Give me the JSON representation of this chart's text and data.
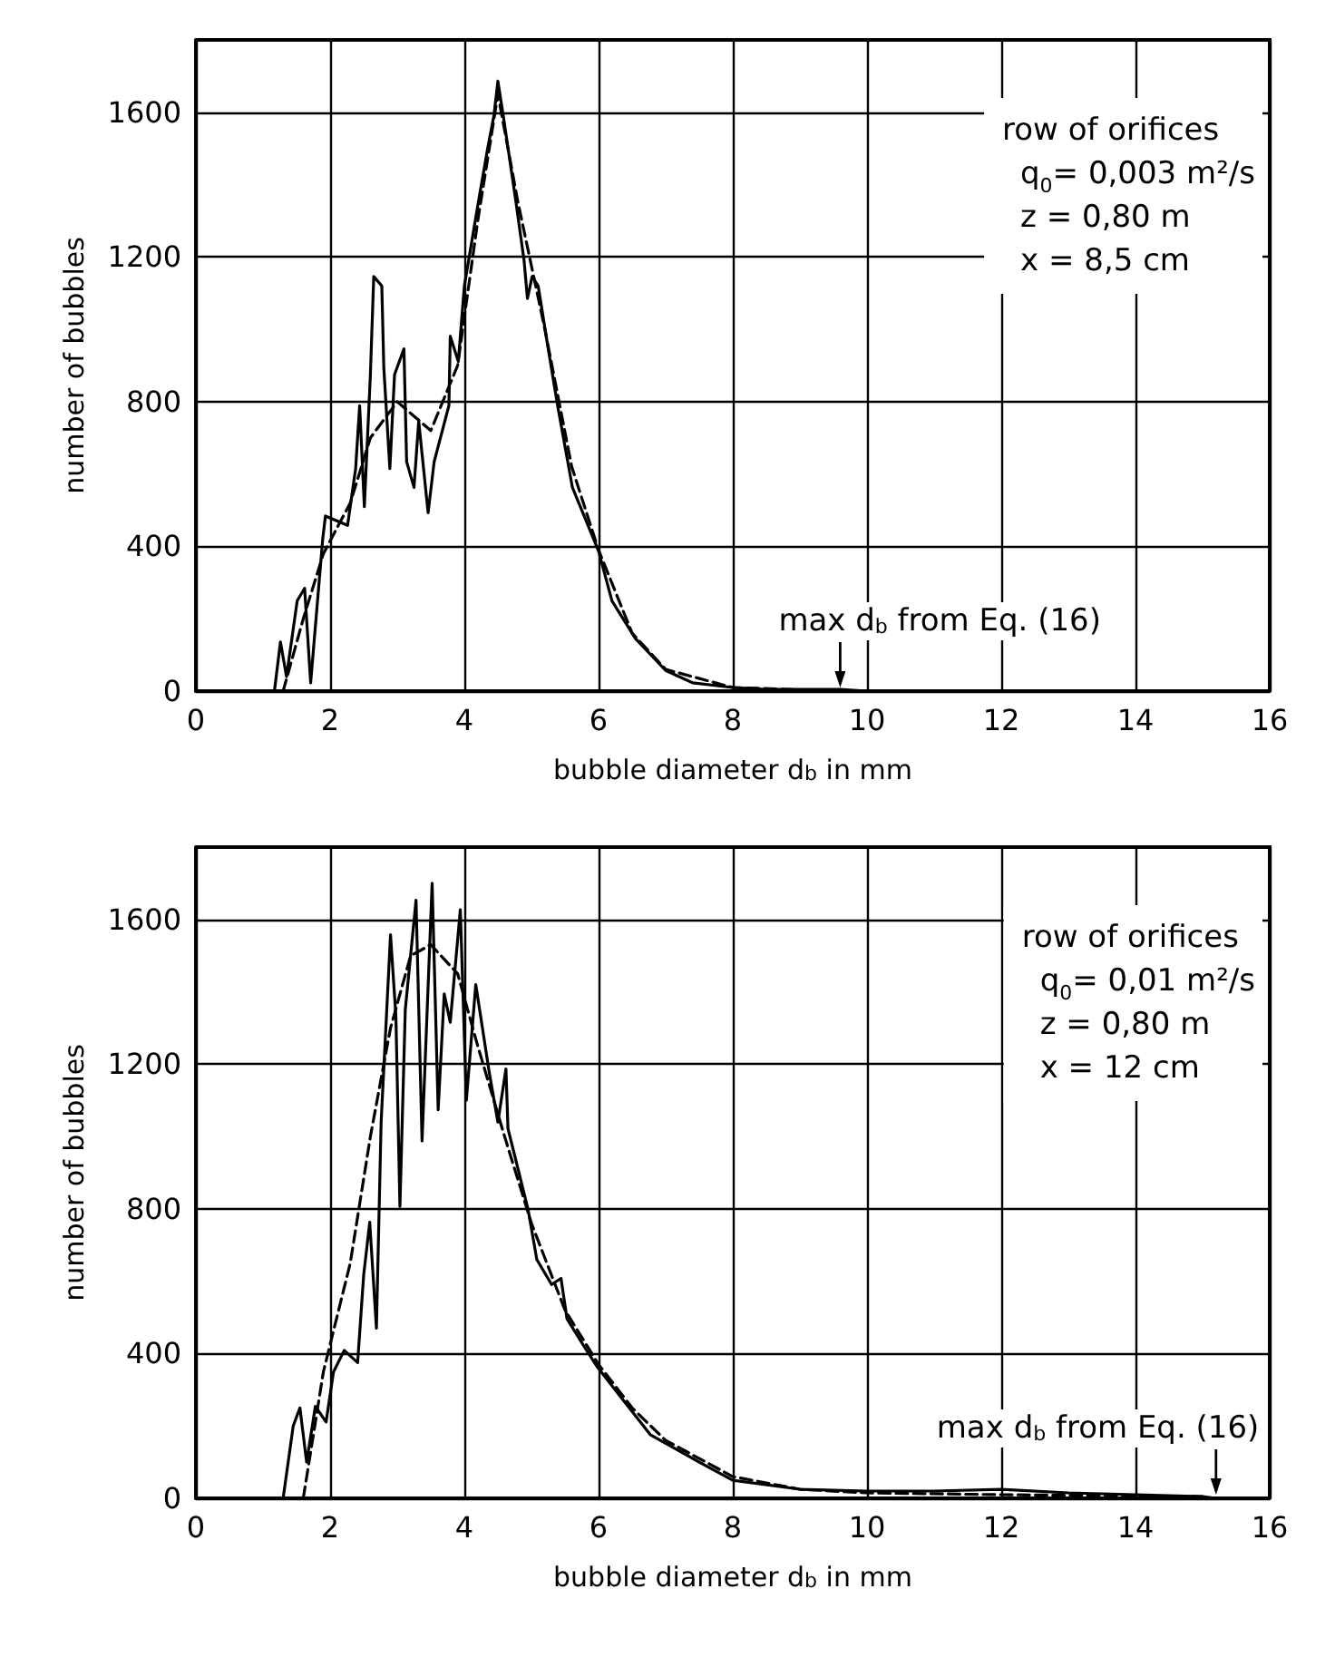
{
  "chart_data": [
    {
      "type": "line",
      "xlabel": "bubble diameter d$_{b}$ in mm",
      "ylabel": "number of bubbles",
      "xlim": [
        0,
        16
      ],
      "ylim": [
        0,
        1800
      ],
      "xticks": [
        0,
        2,
        4,
        6,
        8,
        10,
        12,
        14,
        16
      ],
      "yticks": [
        0,
        400,
        800,
        1200,
        1600
      ],
      "grid": true,
      "marker": "none",
      "annotations": [
        "row of orifices",
        "q$_{0}$= 0,003 m²/s",
        "z = 0,80 m",
        "x = 8,5 cm",
        {
          "text": "max d$_{b}$ from Eq. (16)",
          "x": 9.6,
          "y": 0
        }
      ],
      "series": [
        {
          "color": "#000000",
          "line_style": "solid",
          "x": [
            1.17,
            1.26,
            1.35,
            1.51,
            1.62,
            1.71,
            1.89,
            1.93,
            2.26,
            2.38,
            2.44,
            2.51,
            2.6,
            2.65,
            2.77,
            2.8,
            2.89,
            2.96,
            3.1,
            3.14,
            3.25,
            3.32,
            3.46,
            3.55,
            3.77,
            3.79,
            3.91,
            4.0,
            4.22,
            4.35,
            4.44,
            4.5,
            4.58,
            4.76,
            4.89,
            4.94,
            5.01,
            5.1,
            5.25,
            5.39,
            5.61,
            6.0,
            6.2,
            6.55,
            7.0,
            7.4,
            8.0,
            8.5,
            9.0,
            9.6,
            10.0
          ],
          "values": [
            0,
            136,
            40,
            250,
            284,
            23,
            421,
            484,
            458,
            615,
            789,
            510,
            875,
            1146,
            1120,
            894,
            615,
            875,
            946,
            634,
            563,
            746,
            493,
            634,
            789,
            981,
            911,
            1120,
            1364,
            1503,
            1590,
            1686,
            1590,
            1364,
            1190,
            1085,
            1146,
            1120,
            946,
            789,
            563,
            387,
            249,
            145,
            57,
            23,
            10,
            5,
            5,
            5,
            0
          ]
        },
        {
          "color": "#000000",
          "line_style": "dashed",
          "x": [
            1.3,
            1.6,
            1.9,
            2.3,
            2.6,
            3.0,
            3.5,
            3.9,
            4.2,
            4.5,
            4.8,
            5.2,
            5.6,
            6.0,
            6.5,
            7.0,
            8.0,
            9.6
          ],
          "values": [
            0,
            200,
            380,
            520,
            700,
            800,
            720,
            900,
            1300,
            1650,
            1350,
            1000,
            620,
            390,
            160,
            60,
            10,
            0
          ]
        }
      ]
    },
    {
      "type": "line",
      "xlabel": "bubble diameter d$_{b}$ in mm",
      "ylabel": "number of bubbles",
      "xlim": [
        0,
        16
      ],
      "ylim": [
        0,
        1800
      ],
      "xticks": [
        0,
        2,
        4,
        6,
        8,
        10,
        12,
        14,
        16
      ],
      "yticks": [
        0,
        400,
        800,
        1200,
        1600
      ],
      "grid": true,
      "marker": "none",
      "annotations": [
        "row of orifices",
        "q$_{0}$= 0,01 m²/s",
        "z = 0,80 m",
        "x = 12 cm",
        {
          "text": "max d$_{b}$ from Eq. (16)",
          "x": 15.2,
          "y": 0
        }
      ],
      "series": [
        {
          "color": "#000000",
          "line_style": "solid",
          "x": [
            1.3,
            1.45,
            1.55,
            1.65,
            1.78,
            1.94,
            2.05,
            2.21,
            2.41,
            2.5,
            2.59,
            2.69,
            2.76,
            2.9,
            2.98,
            3.04,
            3.12,
            3.28,
            3.37,
            3.52,
            3.61,
            3.7,
            3.79,
            3.94,
            4.03,
            4.17,
            4.37,
            4.5,
            4.62,
            4.65,
            4.95,
            5.08,
            5.3,
            5.44,
            5.53,
            5.79,
            5.97,
            6.33,
            6.77,
            7.5,
            8.0,
            9.0,
            10.0,
            11.0,
            12.0,
            13.0,
            14.0,
            15.0,
            15.2
          ],
          "values": [
            0,
            200,
            250,
            100,
            254,
            211,
            349,
            409,
            375,
            617,
            763,
            470,
            1040,
            1558,
            1333,
            807,
            1351,
            1653,
            988,
            1700,
            1074,
            1394,
            1316,
            1627,
            1100,
            1420,
            1178,
            1040,
            1187,
            1022,
            798,
            660,
            591,
            608,
            496,
            418,
            366,
            280,
            176,
            100,
            50,
            25,
            20,
            20,
            25,
            15,
            10,
            5,
            0
          ]
        },
        {
          "color": "#000000",
          "line_style": "dashed",
          "x": [
            1.6,
            1.9,
            2.3,
            2.6,
            2.9,
            3.2,
            3.5,
            3.9,
            4.2,
            4.6,
            5.0,
            5.5,
            6.0,
            6.5,
            7.0,
            8.0,
            9.0,
            10.0,
            12.0,
            15.0
          ],
          "values": [
            0,
            350,
            650,
            1000,
            1300,
            1500,
            1530,
            1450,
            1250,
            1000,
            760,
            520,
            370,
            250,
            160,
            60,
            25,
            15,
            10,
            5
          ]
        }
      ]
    }
  ]
}
